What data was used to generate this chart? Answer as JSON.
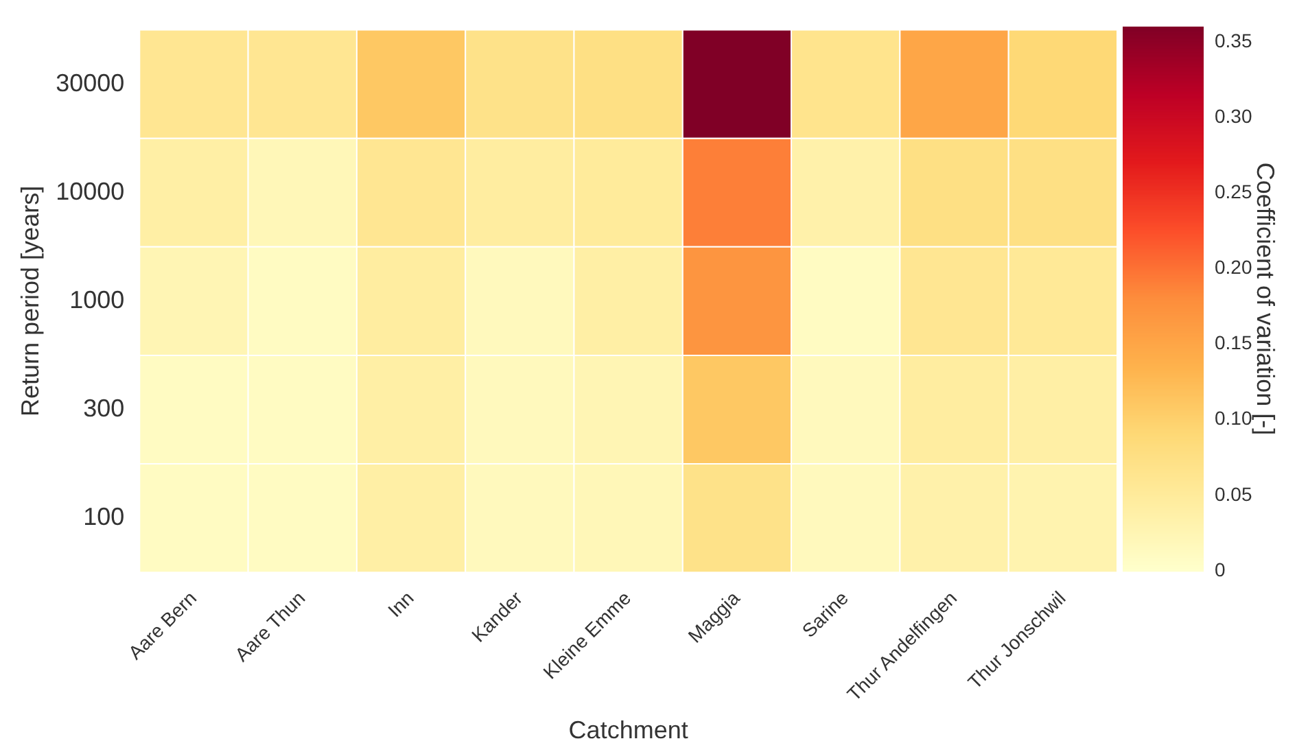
{
  "chart_data": {
    "type": "heatmap",
    "xlabel": "Catchment",
    "ylabel": "Return period [years]",
    "clabel": "Coefficient of variation [-]",
    "categories": [
      "Aare Bern",
      "Aare Thun",
      "Inn",
      "Kander",
      "Kleine Emme",
      "Maggia",
      "Sarine",
      "Thur Andelfingen",
      "Thur Jonschwil"
    ],
    "y_categories": [
      "30000",
      "10000",
      "1000",
      "300",
      "100"
    ],
    "cells": [
      [
        0.06,
        0.06,
        0.11,
        0.07,
        0.075,
        0.36,
        0.065,
        0.15,
        0.09
      ],
      [
        0.04,
        0.02,
        0.06,
        0.045,
        0.05,
        0.19,
        0.035,
        0.075,
        0.075
      ],
      [
        0.025,
        0.01,
        0.045,
        0.015,
        0.04,
        0.17,
        0.01,
        0.06,
        0.055
      ],
      [
        0.01,
        0.01,
        0.04,
        0.015,
        0.025,
        0.11,
        0.015,
        0.045,
        0.04
      ],
      [
        0.01,
        0.01,
        0.04,
        0.015,
        0.02,
        0.07,
        0.015,
        0.035,
        0.03
      ]
    ],
    "clim": [
      0,
      0.36
    ],
    "cticks": [
      0,
      0.05,
      {
        "value": 0.1,
        "label": "0.10"
      },
      0.15,
      {
        "value": 0.2,
        "label": "0.20"
      },
      0.25,
      {
        "value": 0.3,
        "label": "0.30"
      },
      0.35
    ]
  }
}
